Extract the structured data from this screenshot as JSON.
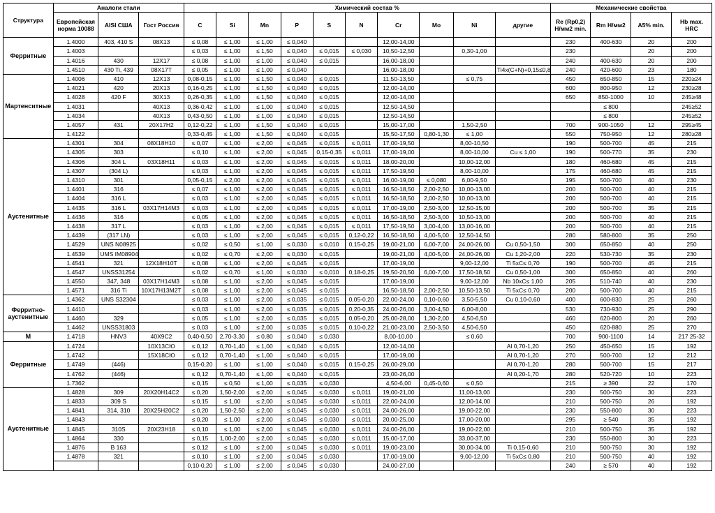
{
  "headers": {
    "structure": "Структура",
    "group_analogs": "Аналоги стали",
    "group_chem": "Химический состав %",
    "group_mech": "Механические свойства",
    "eu": "Европейская норма 10088",
    "aisi": "AISI США",
    "gost": "Гост Россия",
    "c": "C",
    "si": "Si",
    "mn": "Mn",
    "p": "P",
    "s": "S",
    "n": "N",
    "cr": "Cr",
    "mo": "Mo",
    "ni": "Ni",
    "other": "другие",
    "re": "Re (Rp0,2) Н/мм2 min.",
    "rm": "Rm Н/мм2",
    "a5": "A5% min.",
    "hb": "Hb max. HRC"
  },
  "groups": [
    {
      "name": "Ферритные",
      "rows": [
        [
          "1.4000",
          "403, 410 S",
          "08Х13",
          "≤ 0,08",
          "≤ 1,00",
          "≤ 1,00",
          "≤ 0,040",
          "",
          "",
          "12,00-14,00",
          "",
          "",
          "",
          "230",
          "400-630",
          "20",
          "200"
        ],
        [
          "1.4003",
          "",
          "",
          "≤ 0,03",
          "≤ 1,00",
          "≤ 1,50",
          "≤ 0,040",
          "≤ 0,015",
          "≤ 0,030",
          "10,50-12,50",
          "",
          "0,30-1,00",
          "",
          "230",
          "",
          "20",
          "200"
        ],
        [
          "1.4016",
          "430",
          "12Х17",
          "≤ 0,08",
          "≤ 1,00",
          "≤ 1,00",
          "≤ 0,040",
          "≤ 0,015",
          "",
          "16,00-18,00",
          "",
          "",
          "",
          "240",
          "400-630",
          "20",
          "200"
        ],
        [
          "1.4510",
          "430 Ti, 439",
          "08Х17Т",
          "≤ 0,05",
          "≤ 1,00",
          "≤ 1,00",
          "≤ 0,040",
          "",
          "",
          "16,00-18,00",
          "",
          "",
          "Ti4x(C+N)+0,15≤0,8",
          "240",
          "420-600",
          "23",
          "180"
        ]
      ]
    },
    {
      "name": "Мартенситные",
      "rows": [
        [
          "1.4006",
          "410",
          "12Х13",
          "0,08-0,15",
          "≤ 1,00",
          "≤ 1,50",
          "≤ 0,040",
          "≤ 0,015",
          "",
          "11,50-13,50",
          "",
          "≤ 0,75",
          "",
          "450",
          "650-850",
          "15",
          "220≥24"
        ],
        [
          "1.4021",
          "420",
          "20Х13",
          "0,16-0,25",
          "≤ 1,00",
          "≤ 1,50",
          "≤ 0,040",
          "≤ 0,015",
          "",
          "12,00-14,00",
          "",
          "",
          "",
          "600",
          "800-950",
          "12",
          "230≥28"
        ],
        [
          "1.4028",
          "420 F",
          "30Х13",
          "0,26-0,35",
          "≤ 1,00",
          "≤ 1,50",
          "≤ 0,040",
          "≤ 0,015",
          "",
          "12,00-14,00",
          "",
          "",
          "",
          "650",
          "850-1000",
          "10",
          "245≥48"
        ],
        [
          "1.4031",
          "",
          "40Х13",
          "0,36-0,42",
          "≤ 1,00",
          "≤ 1,00",
          "≤ 0,040",
          "≤ 0,015",
          "",
          "12,50-14,50",
          "",
          "",
          "",
          "",
          "≤ 800",
          "",
          "245≥52"
        ],
        [
          "1.4034",
          "",
          "40Х13",
          "0,43-0,50",
          "≤ 1,00",
          "≤ 1,00",
          "≤ 0,040",
          "≤ 0,015",
          "",
          "12,50-14,50",
          "",
          "",
          "",
          "",
          "≤ 800",
          "",
          "245≥52"
        ],
        [
          "1.4057",
          "431",
          "20Х17Н2",
          "0,12-0,22",
          "≤ 1,00",
          "≤ 1,50",
          "≤ 0,040",
          "≤ 0,015",
          "",
          "15,00-17,00",
          "",
          "1,50-2,50",
          "",
          "700",
          "900-1050",
          "12",
          "295≥45"
        ],
        [
          "1.4122",
          "",
          "",
          "0,33-0,45",
          "≤ 1,00",
          "≤ 1,50",
          "≤ 0,040",
          "≤ 0,015",
          "",
          "15,50-17,50",
          "0,80-1,30",
          "≤ 1,00",
          "",
          "550",
          "750-950",
          "12",
          "280≥28"
        ]
      ]
    },
    {
      "name": "Аустенитные",
      "rows": [
        [
          "1.4301",
          "304",
          "08Х18Н10",
          "≤ 0,07",
          "≤ 1,00",
          "≤ 2,00",
          "≤ 0,045",
          "≤ 0,015",
          "≤ 0,011",
          "17,00-19,50",
          "",
          "8,00-10,50",
          "",
          "190",
          "500-700",
          "45",
          "215"
        ],
        [
          "1.4305",
          "303",
          "",
          "≤ 0,10",
          "≤ 1,00",
          "≤ 2,00",
          "≤ 0,045",
          "0,15-0,35",
          "≤ 0,011",
          "17,00-19,00",
          "",
          "8,00-10,00",
          "Cu ≤ 1,00",
          "190",
          "500-770",
          "35",
          "230"
        ],
        [
          "1.4306",
          "304 L",
          "03Х18Н11",
          "≤ 0,03",
          "≤ 1,00",
          "≤ 2,00",
          "≤ 0,045",
          "≤ 0,015",
          "≤ 0,011",
          "18,00-20,00",
          "",
          "10,00-12,00",
          "",
          "180",
          "460-680",
          "45",
          "215"
        ],
        [
          "1.4307",
          "(304 L)",
          "",
          "≤ 0,03",
          "≤ 1,00",
          "≤ 2,00",
          "≤ 0,045",
          "≤ 0,015",
          "≤ 0,011",
          "17,50-19,50",
          "",
          "8,00-10,00",
          "",
          "175",
          "460-680",
          "45",
          "215"
        ],
        [
          "1.4310",
          "301",
          "",
          "0,05-0,15",
          "≤ 2,00",
          "≤ 2,00",
          "≤ 0,045",
          "≤ 0,015",
          "≤ 0,011",
          "16,00-19,00",
          "≤ 0,080",
          "6,00-9,50",
          "",
          "195",
          "500-700",
          "40",
          "230"
        ],
        [
          "1.4401",
          "316",
          "",
          "≤ 0,07",
          "≤ 1,00",
          "≤ 2,00",
          "≤ 0,045",
          "≤ 0,015",
          "≤ 0,011",
          "16,50-18,50",
          "2,00-2,50",
          "10,00-13,00",
          "",
          "200",
          "500-700",
          "40",
          "215"
        ],
        [
          "1.4404",
          "316 L",
          "",
          "≤ 0,03",
          "≤ 1,00",
          "≤ 2,00",
          "≤ 0,045",
          "≤ 0,015",
          "≤ 0,011",
          "16,50-18,50",
          "2,00-2,50",
          "10,00-13,00",
          "",
          "200",
          "500-700",
          "40",
          "215"
        ],
        [
          "1.4435",
          "316 L",
          "03Х17Н14М3",
          "≤ 0,03",
          "≤ 1,00",
          "≤ 2,00",
          "≤ 0,045",
          "≤ 0,015",
          "≤ 0,011",
          "17,00-19,00",
          "2,50-3,00",
          "12,50-15,00",
          "",
          "200",
          "500-700",
          "35",
          "215"
        ],
        [
          "1.4436",
          "316",
          "",
          "≤ 0,05",
          "≤ 1,00",
          "≤ 2,00",
          "≤ 0,045",
          "≤ 0,015",
          "≤ 0,011",
          "16,50-18,50",
          "2,50-3,00",
          "10,50-13,00",
          "",
          "200",
          "500-700",
          "40",
          "215"
        ],
        [
          "1.4438",
          "317 L",
          "",
          "≤ 0,03",
          "≤ 1,00",
          "≤ 2,00",
          "≤ 0,045",
          "≤ 0,015",
          "≤ 0,011",
          "17,50-19,50",
          "3,00-4,00",
          "13,00-16,00",
          "",
          "200",
          "500-700",
          "40",
          "215"
        ],
        [
          "1.4439",
          "(317 LN)",
          "",
          "≤ 0,03",
          "≤ 1,00",
          "≤ 2,00",
          "≤ 0,045",
          "≤ 0,015",
          "0,12-0,22",
          "16,50-18,50",
          "4,00-5,00",
          "12,50-14,50",
          "",
          "280",
          "580-800",
          "35",
          "250"
        ],
        [
          "1.4529",
          "UNS N08925",
          "",
          "≤ 0,02",
          "≤ 0,50",
          "≤ 1,00",
          "≤ 0,030",
          "≤ 0,010",
          "0,15-0,25",
          "19,00-21,00",
          "6,00-7,00",
          "24,00-26,00",
          "Cu 0,50-1,50",
          "300",
          "650-850",
          "40",
          "250"
        ],
        [
          "1.4539",
          "UMS IM08904",
          "",
          "≤ 0,02",
          "≤ 0,70",
          "≤ 2,00",
          "≤ 0,030",
          "≤ 0,015",
          "",
          "19,00-21,00",
          "4,00-5,00",
          "24,00-26,00",
          "Cu 1,20-2,00",
          "220",
          "530-730",
          "35",
          "230"
        ],
        [
          "1.4541",
          "321",
          "12Х18Н10Т",
          "≤ 0,08",
          "≤ 1,00",
          "≤ 2,00",
          "≤ 0,045",
          "≤ 0,015",
          "",
          "17,00-19,00",
          "",
          "9,00-12,00",
          "Ti 5xC≤ 0,70",
          "190",
          "500-700",
          "45",
          "215"
        ],
        [
          "1.4547",
          "UNSS31254",
          "",
          "≤ 0,02",
          "≤ 0,70",
          "≤ 1,00",
          "≤ 0,030",
          "≤ 0,010",
          "0,18-0,25",
          "19,50-20,50",
          "6,00-7,00",
          "17,50-18,50",
          "Cu 0,50-1,00",
          "300",
          "650-850",
          "40",
          "260"
        ],
        [
          "1.4550",
          "347, 348",
          "03Х17Н14М3",
          "≤ 0,08",
          "≤ 1,00",
          "≤ 2,00",
          "≤ 0,045",
          "≤ 0,015",
          "",
          "17,00-19,00",
          "",
          "9,00-12,00",
          "Nb 10xC≤ 1,00",
          "205",
          "510-740",
          "40",
          "230"
        ],
        [
          "1.4571",
          "316 Ti",
          "10Х17Н13М2Т",
          "≤ 0,08",
          "≤ 1,00",
          "≤ 2,00",
          "≤ 0,045",
          "≤ 0,015",
          "",
          "16,50-18,50",
          "2,00-2,50",
          "10,50-13,50",
          "Ti 5xC≤ 0,70",
          "200",
          "500-700",
          "40",
          "215"
        ]
      ]
    },
    {
      "name": "Ферритно-аустенитные",
      "rows": [
        [
          "1.4362",
          "UNS S32304",
          "",
          "≤ 0,03",
          "≤ 1,00",
          "≤ 2,00",
          "≤ 0,035",
          "≤ 0,015",
          "0,05-0,20",
          "22,00-24,00",
          "0,10-0,60",
          "3,50-5,50",
          "Cu 0,10-0,60",
          "400",
          "600-830",
          "25",
          "260"
        ],
        [
          "1.4410",
          "",
          "",
          "≤ 0,03",
          "≤ 1,00",
          "≤ 2,00",
          "≤ 0,035",
          "≤ 0,015",
          "0,20-0,35",
          "24,00-26,00",
          "3,00-4,50",
          "6,00-8,00",
          "",
          "530",
          "730-930",
          "25",
          "290"
        ],
        [
          "1.4460",
          "329",
          "",
          "≤ 0,05",
          "≤ 1,00",
          "≤ 2,00",
          "≤ 0,035",
          "≤ 0,015",
          "0,05-0,20",
          "25,00-28,00",
          "1,30-2,00",
          "4,50-6,50",
          "",
          "460",
          "620-800",
          "20",
          "260"
        ],
        [
          "1.4462",
          "UNSS31803",
          "",
          "≤ 0,03",
          "≤ 1,00",
          "≤ 2,00",
          "≤ 0,035",
          "≤ 0,015",
          "0,10-0,22",
          "21,00-23,00",
          "2,50-3,50",
          "4,50-6,50",
          "",
          "450",
          "620-880",
          "25",
          "270"
        ]
      ]
    },
    {
      "name": "М",
      "rows": [
        [
          "1.4718",
          "HNV3",
          "40Х9С2",
          "0,40-0,50",
          "2,70-3,30",
          "≤ 0,80",
          "≤ 0,040",
          "≤ 0,030",
          "",
          "8,00-10,00",
          "",
          "≤ 0,60",
          "",
          "700",
          "900-1100",
          "14",
          "217 25-32"
        ]
      ]
    },
    {
      "name": "Ферритные",
      "rows": [
        [
          "1.4724",
          "",
          "10Х13СЮ",
          "≤ 0,12",
          "0,70-1,40",
          "≤ 1,00",
          "≤ 0,040",
          "≤ 0,015",
          "",
          "12,00-14,00",
          "",
          "",
          "Al 0,70-1,20",
          "250",
          "450-650",
          "15",
          "192"
        ],
        [
          "1.4742",
          "",
          "15Х18СЮ",
          "≤ 0,12",
          "0,70-1,40",
          "≤ 1,00",
          "≤ 0,040",
          "≤ 0,015",
          "",
          "17,00-19,00",
          "",
          "",
          "Al 0,70-1,20",
          "270",
          "500-700",
          "12",
          "212"
        ],
        [
          "1.4749",
          "(446)",
          "",
          "0,15-0,20",
          "≤ 1,00",
          "≤ 1,00",
          "≤ 0,040",
          "≤ 0,015",
          "0,15-0,25",
          "26,00-29,00",
          "",
          "",
          "Al 0,70-1,20",
          "280",
          "500-700",
          "15",
          "217"
        ],
        [
          "1.4762",
          "(446)",
          "",
          "≤ 0,12",
          "0,70-1,40",
          "≤ 1,00",
          "≤ 0,040",
          "≤ 0,015",
          "",
          "23,00-26,00",
          "",
          "",
          "Al 0,20-1,70",
          "280",
          "520-720",
          "10",
          "223"
        ],
        [
          "1.7362",
          "",
          "",
          "≤ 0,15",
          "≤ 0,50",
          "≤ 1,00",
          "≤ 0,035",
          "≤ 0,030",
          "",
          "4,50-6,00",
          "0,45-0,60",
          "≤ 0,50",
          "",
          "215",
          "≥ 390",
          "22",
          "170"
        ]
      ]
    },
    {
      "name": "Аустенитные",
      "rows": [
        [
          "1.4828",
          "309",
          "20Х20Н14С2",
          "≤ 0,20",
          "1,50-2,00",
          "≤ 2,00",
          "≤ 0,045",
          "≤ 0,030",
          "≤ 0,011",
          "19,00-21,00",
          "",
          "11,00-13,00",
          "",
          "230",
          "500-750",
          "30",
          "223"
        ],
        [
          "1.4833",
          "309 S",
          "",
          "≤ 0,15",
          "≤ 1,00",
          "≤ 2,00",
          "≤ 0,045",
          "≤ 0,030",
          "≤ 0,011",
          "22,00-24,00",
          "",
          "12,00-14,00",
          "",
          "210",
          "500-750",
          "26",
          "192"
        ],
        [
          "1.4841",
          "314, 310",
          "20Х25Н20С2",
          "≤ 0,20",
          "1,50-2,50",
          "≤ 2,00",
          "≤ 0,045",
          "≤ 0,030",
          "≤ 0,011",
          "24,00-26,00",
          "",
          "19,00-22,00",
          "",
          "230",
          "550-800",
          "30",
          "223"
        ],
        [
          "1.4843",
          "",
          "",
          "≤ 0,20",
          "≤ 1,00",
          "≤ 2,00",
          "≤ 0,045",
          "≤ 0,030",
          "≤ 0,011",
          "20,00-25,00",
          "",
          "17,00-20,00",
          "",
          "295",
          "≥ 540",
          "35",
          "192"
        ],
        [
          "1.4845",
          "310S",
          "20Х23Н18",
          "≤ 0,10",
          "≤ 1,00",
          "≤ 2,00",
          "≤ 0,045",
          "≤ 0,030",
          "≤ 0,011",
          "24,00-26,00",
          "",
          "19,00-22,00",
          "",
          "210",
          "500-750",
          "35",
          "192"
        ],
        [
          "1.4864",
          "330",
          "",
          "≤ 0,15",
          "1,00-2,00",
          "≤ 2,00",
          "≤ 0,045",
          "≤ 0,030",
          "≤ 0,011",
          "15,00-17,00",
          "",
          "33,00-37,00",
          "",
          "230",
          "550-800",
          "30",
          "223"
        ],
        [
          "1.4876",
          "B 163",
          "",
          "≤ 0,12",
          "≤ 1,00",
          "≤ 2,00",
          "≤ 0,045",
          "≤ 0,030",
          "≤ 0,011",
          "19,00-23,00",
          "",
          "30,00-34,00",
          "Ti 0,15-0,60",
          "210",
          "500-750",
          "30",
          "192"
        ],
        [
          "1.4878",
          "321",
          "",
          "≤ 0,10",
          "≤ 1,00",
          "≤ 2,00",
          "≤ 0,045",
          "≤ 0,030",
          "",
          "17,00-19,00",
          "",
          "9,00-12,00",
          "Ti 5xC≤ 0,80",
          "210",
          "500-750",
          "40",
          "192"
        ],
        [
          "",
          "",
          "",
          "0,10-0,20",
          "≤ 1,00",
          "≤ 2,00",
          "≤ 0,045",
          "≤ 0,030",
          "",
          "24,00-27,00",
          "",
          "",
          "",
          "240",
          "≥ 570",
          "40",
          "192"
        ]
      ]
    }
  ]
}
